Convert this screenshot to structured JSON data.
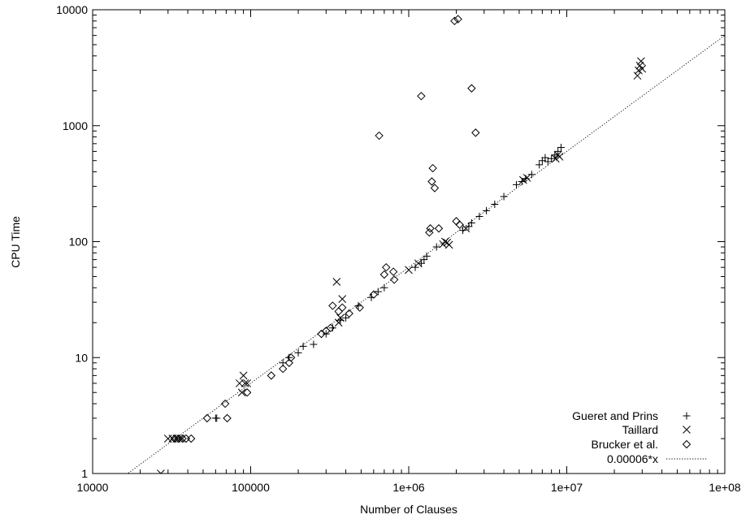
{
  "chart_data": {
    "type": "scatter",
    "title": "",
    "xlabel": "Number of Clauses",
    "ylabel": "CPU Time",
    "xscale": "log",
    "yscale": "log",
    "xlim": [
      10000,
      100000000
    ],
    "ylim": [
      1,
      10000
    ],
    "grid": false,
    "legend_position": "bottom-right",
    "x_ticks": [
      {
        "value": 10000,
        "label": "10000"
      },
      {
        "value": 100000,
        "label": "100000"
      },
      {
        "value": 1000000,
        "label": "1e+06"
      },
      {
        "value": 10000000,
        "label": "1e+07"
      },
      {
        "value": 100000000,
        "label": "1e+08"
      }
    ],
    "y_ticks": [
      {
        "value": 1,
        "label": "1"
      },
      {
        "value": 10,
        "label": "10"
      },
      {
        "value": 100,
        "label": "100"
      },
      {
        "value": 1000,
        "label": "1000"
      },
      {
        "value": 10000,
        "label": "10000"
      }
    ],
    "series": [
      {
        "name": "Gueret and Prins",
        "marker": "plus",
        "points": [
          [
            60000,
            3
          ],
          [
            61000,
            3
          ],
          [
            160000,
            9
          ],
          [
            175000,
            10
          ],
          [
            200000,
            11
          ],
          [
            215000,
            12.5
          ],
          [
            250000,
            13
          ],
          [
            300000,
            16
          ],
          [
            330000,
            18
          ],
          [
            370000,
            21
          ],
          [
            400000,
            22
          ],
          [
            480000,
            28
          ],
          [
            580000,
            33
          ],
          [
            640000,
            37
          ],
          [
            700000,
            40
          ],
          [
            1100000,
            60
          ],
          [
            1200000,
            65
          ],
          [
            1250000,
            70
          ],
          [
            1300000,
            75
          ],
          [
            1500000,
            90
          ],
          [
            2200000,
            125
          ],
          [
            2400000,
            135
          ],
          [
            2500000,
            145
          ],
          [
            2800000,
            165
          ],
          [
            3100000,
            185
          ],
          [
            3500000,
            210
          ],
          [
            4000000,
            245
          ],
          [
            4800000,
            310
          ],
          [
            5200000,
            330
          ],
          [
            5500000,
            350
          ],
          [
            6000000,
            380
          ],
          [
            6700000,
            460
          ],
          [
            7000000,
            500
          ],
          [
            7300000,
            530
          ],
          [
            7600000,
            490
          ],
          [
            8000000,
            520
          ],
          [
            8400000,
            560
          ],
          [
            8800000,
            600
          ],
          [
            9200000,
            650
          ]
        ]
      },
      {
        "name": "Taillard",
        "marker": "cross",
        "points": [
          [
            27000,
            1
          ],
          [
            30000,
            2
          ],
          [
            32000,
            2
          ],
          [
            34000,
            2
          ],
          [
            36000,
            2
          ],
          [
            85000,
            6
          ],
          [
            88000,
            5
          ],
          [
            90000,
            7
          ],
          [
            92000,
            6
          ],
          [
            95000,
            6
          ],
          [
            350000,
            45
          ],
          [
            360000,
            20
          ],
          [
            370000,
            22
          ],
          [
            380000,
            32
          ],
          [
            1000000,
            57
          ],
          [
            1150000,
            65
          ],
          [
            1650000,
            95
          ],
          [
            1700000,
            100
          ],
          [
            1750000,
            98
          ],
          [
            1800000,
            94
          ],
          [
            2300000,
            130
          ],
          [
            5300000,
            340
          ],
          [
            5600000,
            355
          ],
          [
            8500000,
            520
          ],
          [
            8800000,
            560
          ],
          [
            9000000,
            540
          ],
          [
            28000000,
            2700
          ],
          [
            28500000,
            3000
          ],
          [
            29000000,
            3300
          ],
          [
            29500000,
            3600
          ],
          [
            30000000,
            3100
          ]
        ]
      },
      {
        "name": "Brucker et al.",
        "marker": "diamond",
        "points": [
          [
            33000,
            2
          ],
          [
            35000,
            2
          ],
          [
            37000,
            2
          ],
          [
            39000,
            2
          ],
          [
            42000,
            2
          ],
          [
            53000,
            3
          ],
          [
            69000,
            4
          ],
          [
            71000,
            3
          ],
          [
            95000,
            5
          ],
          [
            135000,
            7
          ],
          [
            160000,
            8
          ],
          [
            175000,
            9
          ],
          [
            180000,
            10
          ],
          [
            280000,
            16
          ],
          [
            300000,
            17
          ],
          [
            320000,
            18
          ],
          [
            330000,
            28
          ],
          [
            360000,
            25
          ],
          [
            380000,
            27
          ],
          [
            420000,
            24
          ],
          [
            490000,
            27
          ],
          [
            600000,
            35
          ],
          [
            650000,
            820
          ],
          [
            700000,
            52
          ],
          [
            720000,
            60
          ],
          [
            800000,
            55
          ],
          [
            810000,
            47
          ],
          [
            1200000,
            1800
          ],
          [
            1350000,
            120
          ],
          [
            1370000,
            130
          ],
          [
            1400000,
            330
          ],
          [
            1420000,
            430
          ],
          [
            1460000,
            290
          ],
          [
            1550000,
            130
          ],
          [
            1950000,
            8000
          ],
          [
            2050000,
            8300
          ],
          [
            2000000,
            150
          ],
          [
            2100000,
            140
          ],
          [
            2500000,
            2100
          ],
          [
            2650000,
            870
          ]
        ]
      },
      {
        "name": "0.00006*x",
        "marker": "dotted-line",
        "function": "0.00006*x"
      }
    ]
  }
}
